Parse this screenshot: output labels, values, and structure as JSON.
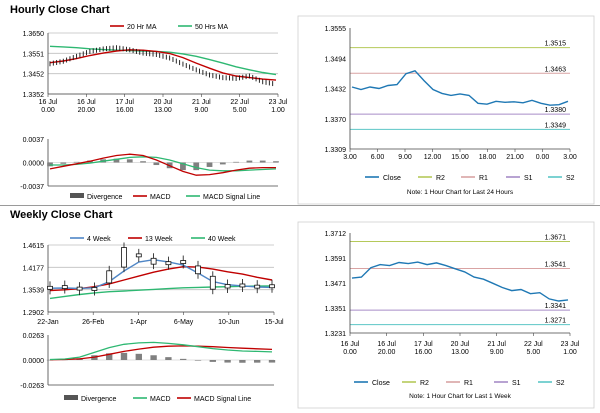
{
  "sections": {
    "hourly_title": "Hourly Close Chart",
    "weekly_title": "Weekly Close Chart"
  },
  "colors": {
    "ma_short": "#c00000",
    "ma_long": "#2eb872",
    "macd": "#c00000",
    "signal": "#2eb872",
    "close": "#1f78b4",
    "r2": "#b5c95a",
    "r1": "#d9a3a3",
    "s1": "#a68cc6",
    "s2": "#5cc6c6",
    "divergence": "#808080",
    "grid": "#bfbfbf",
    "ma4": "#4f86c6",
    "ma13": "#c00000",
    "ma40": "#2eb872"
  },
  "chart_data": [
    {
      "id": "hourly_price",
      "type": "line",
      "title": "",
      "legend": [
        "20 Hr MA",
        "50 Hrs MA"
      ],
      "yticks": [
        "1.3650",
        "1.3551",
        "1.3452",
        "1.3352"
      ],
      "ylim": [
        1.3352,
        1.365
      ],
      "xticks": [
        [
          "16 Jul",
          "0.00"
        ],
        [
          "16 Jul",
          "20.00"
        ],
        [
          "17 Jul",
          "16.00"
        ],
        [
          "20 Jul",
          "13.00"
        ],
        [
          "21 Jul",
          "9.00"
        ],
        [
          "22 Jul",
          "5.00"
        ],
        [
          "23 Jul",
          "1.00"
        ]
      ],
      "series": [
        {
          "name": "20 Hr MA",
          "values": [
            1.3505,
            1.3513,
            1.3525,
            1.354,
            1.3552,
            1.3562,
            1.3568,
            1.3566,
            1.356,
            1.355,
            1.353,
            1.3503,
            1.3478,
            1.3455,
            1.344,
            1.3432,
            1.3425,
            1.342
          ]
        },
        {
          "name": "50 Hrs MA",
          "values": [
            1.3585,
            1.3582,
            1.3578,
            1.3573,
            1.3569,
            1.3566,
            1.3564,
            1.3562,
            1.356,
            1.3556,
            1.3548,
            1.3536,
            1.352,
            1.3503,
            1.3485,
            1.347,
            1.3457,
            1.3447
          ]
        },
        {
          "name": "Close",
          "values": [
            1.35,
            1.3512,
            1.3536,
            1.356,
            1.3572,
            1.3578,
            1.3568,
            1.3552,
            1.3545,
            1.3528,
            1.3498,
            1.347,
            1.3445,
            1.3432,
            1.3428,
            1.344,
            1.3412,
            1.34
          ]
        }
      ]
    },
    {
      "id": "hourly_macd",
      "type": "line",
      "yticks": [
        "0.0037",
        "0.0000",
        "-0.0037"
      ],
      "ylim": [
        -0.0037,
        0.0037
      ],
      "legend": [
        "Divergence",
        "MACD",
        "MACD Signal Line"
      ],
      "series": [
        {
          "name": "MACD",
          "values": [
            -0.001,
            -0.0006,
            -0.0002,
            0.0002,
            0.0007,
            0.0011,
            0.0013,
            0.0011,
            0.0004,
            -0.0005,
            -0.0014,
            -0.002,
            -0.0019,
            -0.0016,
            -0.0012,
            -0.0009,
            -0.0008,
            -0.0008
          ]
        },
        {
          "name": "MACD Signal Line",
          "values": [
            -0.0004,
            -0.0004,
            -0.0003,
            -0.0001,
            0.0002,
            0.0005,
            0.0008,
            0.0009,
            0.0008,
            0.0004,
            -0.0002,
            -0.0008,
            -0.0012,
            -0.0013,
            -0.0013,
            -0.0012,
            -0.0011,
            -0.001
          ]
        },
        {
          "name": "Divergence",
          "values": [
            -0.0006,
            -0.0002,
            0.0001,
            0.0003,
            0.0005,
            0.0006,
            0.0005,
            0.0002,
            -0.0004,
            -0.0009,
            -0.0012,
            -0.0012,
            -0.0007,
            -0.0003,
            0.0001,
            0.0003,
            0.0003,
            0.0002
          ]
        }
      ]
    },
    {
      "id": "hourly_close",
      "type": "line",
      "yticks": [
        "1.3555",
        "1.3494",
        "1.3432",
        "1.3370",
        "1.3309"
      ],
      "ylim": [
        1.3309,
        1.3555
      ],
      "xticks": [
        "3.00",
        "6.00",
        "9.00",
        "12.00",
        "15.00",
        "18.00",
        "21.00",
        "0.00",
        "3.00"
      ],
      "levels": [
        {
          "name": "R2",
          "value": 1.3515,
          "label": "1.3515"
        },
        {
          "name": "R1",
          "value": 1.3463,
          "label": "1.3463"
        },
        {
          "name": "S1",
          "value": 1.338,
          "label": "1.3380"
        },
        {
          "name": "S2",
          "value": 1.3349,
          "label": "1.3349"
        }
      ],
      "series": [
        {
          "name": "Close",
          "values": [
            1.3435,
            1.343,
            1.3435,
            1.3432,
            1.3438,
            1.344,
            1.3462,
            1.3468,
            1.3448,
            1.343,
            1.3422,
            1.3418,
            1.3421,
            1.3418,
            1.3402,
            1.34,
            1.3406,
            1.3404,
            1.3405,
            1.3403,
            1.3408,
            1.3402,
            1.3398,
            1.3399,
            1.3406
          ]
        }
      ],
      "legend": [
        "Close",
        "R2",
        "R1",
        "S1",
        "S2"
      ],
      "note": "Note: 1 Hour Chart for Last 24 Hours"
    },
    {
      "id": "weekly_price",
      "type": "line",
      "legend": [
        "4 Week",
        "13 Week",
        "40 Week"
      ],
      "yticks": [
        "1.4615",
        "1.4177",
        "1.3539",
        "1.2902"
      ],
      "ylim": [
        1.2902,
        1.4615
      ],
      "xticks": [
        "22-Jan",
        "26-Feb",
        "1-Apr",
        "6-May",
        "10-Jun",
        "15-Jul"
      ],
      "series": [
        {
          "name": "4 Week",
          "values": [
            1.351,
            1.3515,
            1.3505,
            1.352,
            1.368,
            1.395,
            1.418,
            1.424,
            1.418,
            1.41,
            1.39,
            1.368,
            1.36,
            1.357,
            1.354,
            1.353
          ]
        },
        {
          "name": "13 Week",
          "values": [
            1.345,
            1.347,
            1.35,
            1.355,
            1.362,
            1.372,
            1.382,
            1.392,
            1.4,
            1.406,
            1.405,
            1.4,
            1.393,
            1.387,
            1.379,
            1.372
          ]
        },
        {
          "name": "40 Week",
          "values": [
            1.325,
            1.33,
            1.335,
            1.339,
            1.342,
            1.344,
            1.346,
            1.348,
            1.35,
            1.352,
            1.353,
            1.354,
            1.355,
            1.356,
            1.3565,
            1.357
          ]
        },
        {
          "name": "Close",
          "values": [
            1.352,
            1.354,
            1.35,
            1.349,
            1.38,
            1.43,
            1.435,
            1.42,
            1.415,
            1.418,
            1.398,
            1.365,
            1.356,
            1.358,
            1.355,
            1.356
          ]
        }
      ]
    },
    {
      "id": "weekly_macd",
      "type": "line",
      "yticks": [
        "0.0263",
        "0.0000",
        "-0.0263"
      ],
      "ylim": [
        -0.0263,
        0.0263
      ],
      "legend": [
        "Divergence",
        "MACD",
        "MACD Signal Line"
      ],
      "series": [
        {
          "name": "MACD",
          "values": [
            0.0005,
            0.001,
            0.003,
            0.008,
            0.013,
            0.0165,
            0.018,
            0.0185,
            0.0175,
            0.016,
            0.014,
            0.012,
            0.0105,
            0.0095,
            0.009,
            0.0085
          ]
        },
        {
          "name": "MACD Signal Line",
          "values": [
            0.0003,
            0.0005,
            0.0012,
            0.003,
            0.006,
            0.009,
            0.0115,
            0.0135,
            0.0145,
            0.0148,
            0.0145,
            0.014,
            0.0132,
            0.0124,
            0.0118,
            0.0112
          ]
        },
        {
          "name": "Divergence",
          "values": [
            0.0002,
            0.0005,
            0.0018,
            0.005,
            0.007,
            0.0075,
            0.0065,
            0.005,
            0.003,
            0.0012,
            -0.0005,
            -0.002,
            -0.0027,
            -0.0029,
            -0.0028,
            -0.0027
          ]
        }
      ]
    },
    {
      "id": "weekly_close",
      "type": "line",
      "yticks": [
        "1.3712",
        "1.3591",
        "1.3471",
        "1.3351",
        "1.3231"
      ],
      "ylim": [
        1.3231,
        1.3712
      ],
      "xticks": [
        [
          "16 Jul",
          "0.00"
        ],
        [
          "16 Jul",
          "20.00"
        ],
        [
          "17 Jul",
          "16.00"
        ],
        [
          "20 Jul",
          "13.00"
        ],
        [
          "21 Jul",
          "9.00"
        ],
        [
          "22 Jul",
          "5.00"
        ],
        [
          "23 Jul",
          "1.00"
        ]
      ],
      "levels": [
        {
          "name": "R2",
          "value": 1.3671,
          "label": "1.3671"
        },
        {
          "name": "R1",
          "value": 1.3541,
          "label": "1.3541"
        },
        {
          "name": "S1",
          "value": 1.3341,
          "label": "1.3341"
        },
        {
          "name": "S2",
          "value": 1.3271,
          "label": "1.3271"
        }
      ],
      "series": [
        {
          "name": "Close",
          "values": [
            1.3495,
            1.35,
            1.3545,
            1.356,
            1.3555,
            1.357,
            1.3565,
            1.3572,
            1.356,
            1.3568,
            1.3555,
            1.354,
            1.3525,
            1.35,
            1.349,
            1.347,
            1.345,
            1.3435,
            1.344,
            1.342,
            1.3425,
            1.3395,
            1.3385,
            1.339
          ]
        }
      ],
      "legend": [
        "Close",
        "R2",
        "R1",
        "S1",
        "S2"
      ],
      "note": "Note: 1 Hour Chart for  Last 1 Week"
    }
  ]
}
